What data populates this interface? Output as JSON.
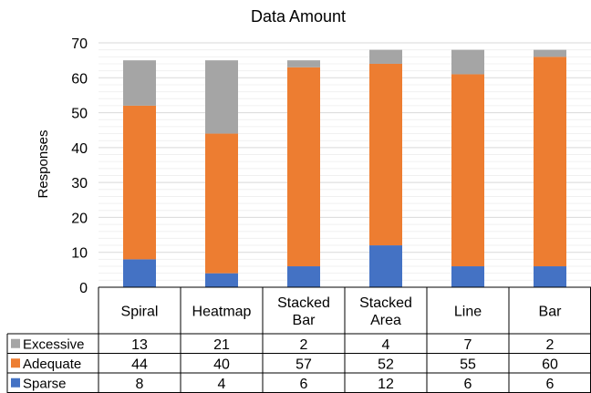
{
  "chart_data": {
    "type": "bar",
    "stacked": true,
    "title": "Data Amount",
    "ylabel": "Responses",
    "ylim": [
      0,
      70
    ],
    "yticks": [
      0,
      10,
      20,
      30,
      40,
      50,
      60,
      70
    ],
    "grid": true,
    "categories": [
      [
        "Spiral"
      ],
      [
        "Heatmap"
      ],
      [
        "Stacked",
        "Bar"
      ],
      [
        "Stacked",
        "Area"
      ],
      [
        "Line"
      ],
      [
        "Bar"
      ]
    ],
    "series": [
      {
        "name": "Sparse",
        "color": "#4472C4",
        "values": [
          8,
          4,
          6,
          12,
          6,
          6
        ]
      },
      {
        "name": "Adequate",
        "color": "#ED7D31",
        "values": [
          44,
          40,
          57,
          52,
          55,
          60
        ]
      },
      {
        "name": "Excessive",
        "color": "#A5A5A5",
        "values": [
          13,
          21,
          2,
          4,
          7,
          2
        ]
      }
    ],
    "legend": "data-table"
  }
}
